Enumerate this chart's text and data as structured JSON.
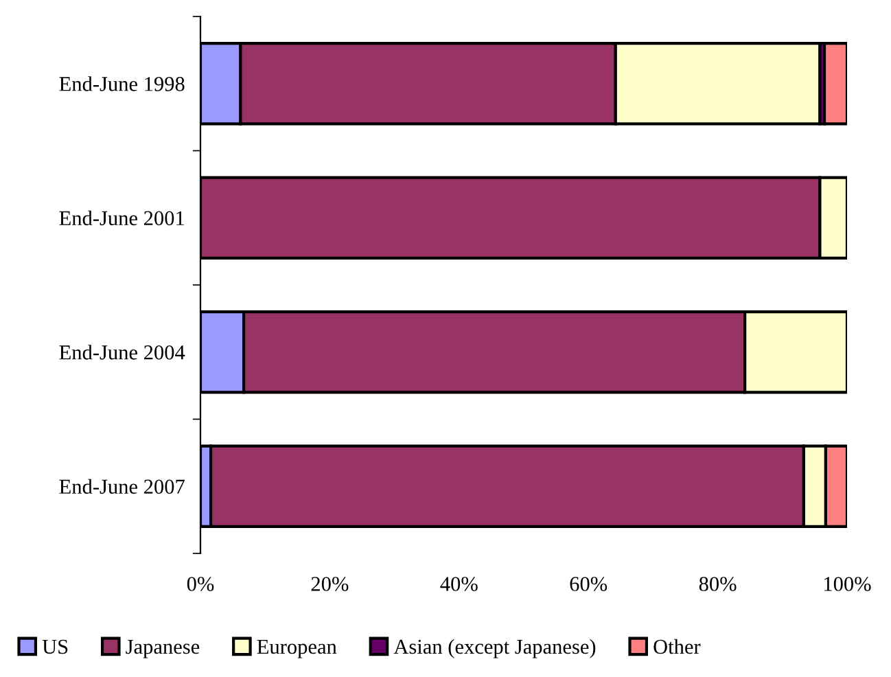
{
  "chart_data": {
    "type": "bar",
    "orientation": "horizontal",
    "stacked": true,
    "categories": [
      "End-June 1998",
      "End-June 2001",
      "End-June 2004",
      "End-June 2007"
    ],
    "series": [
      {
        "name": "US",
        "color": "#9999ff",
        "values": [
          6.2,
          null,
          6.7,
          1.6
        ]
      },
      {
        "name": "Japanese",
        "color": "#993366",
        "values": [
          58.0,
          95.8,
          77.5,
          91.7
        ]
      },
      {
        "name": "European",
        "color": "#ffffcc",
        "values": [
          31.6,
          4.2,
          15.8,
          3.4
        ]
      },
      {
        "name": "Asian (except Japanese)",
        "color": "#660066",
        "values": [
          0.7,
          null,
          null,
          null
        ]
      },
      {
        "name": "Other",
        "color": "#ff8080",
        "values": [
          3.5,
          null,
          null,
          3.3
        ]
      }
    ],
    "xlim": [
      0,
      100
    ],
    "xticks": [
      {
        "value": 0,
        "label": "0%"
      },
      {
        "value": 20,
        "label": "20%"
      },
      {
        "value": 40,
        "label": "40%"
      },
      {
        "value": 60,
        "label": "60%"
      },
      {
        "value": 80,
        "label": "80%"
      },
      {
        "value": 100,
        "label": "100%"
      }
    ],
    "grid": false,
    "legend": "bottom"
  }
}
